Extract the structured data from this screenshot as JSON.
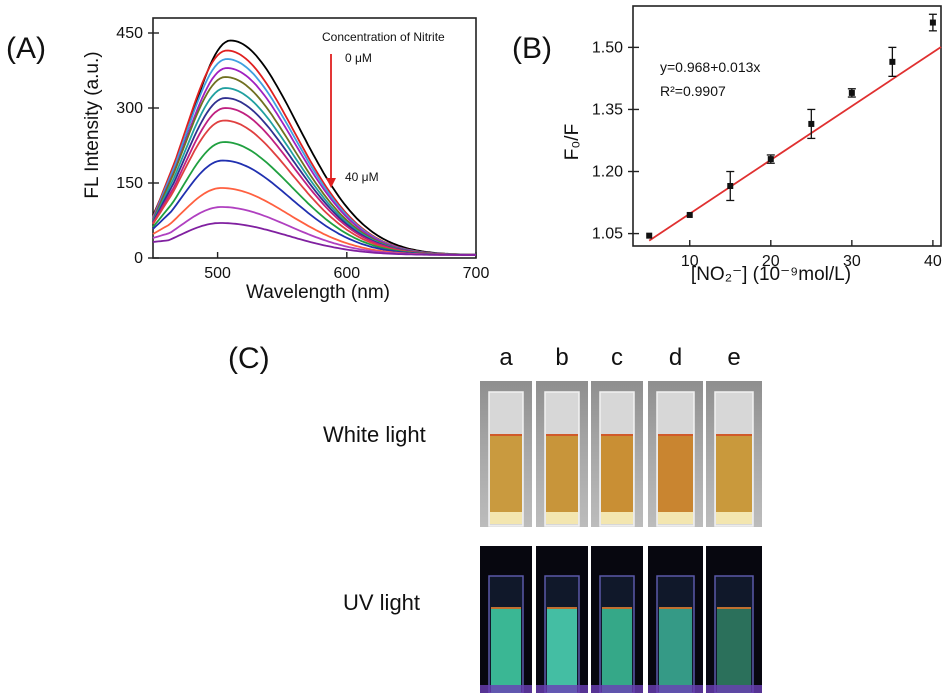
{
  "chart_data": [
    {
      "panel": "(A)",
      "type": "line",
      "xlabel": "Wavelength (nm)",
      "ylabel": "FL Intensity (a.u.)",
      "xlim": [
        450,
        700
      ],
      "ylim": [
        0,
        480
      ],
      "x_ticks": [
        500,
        600,
        700
      ],
      "y_ticks": [
        0,
        150,
        300,
        450
      ],
      "annotation_title": "Concentration of Nitrite",
      "annotation_start": "0 μM",
      "annotation_end": "40 μM",
      "peak_wavelength": [
        510,
        507,
        507,
        507,
        506,
        506,
        506,
        506,
        505,
        505,
        504,
        503,
        503,
        502
      ],
      "series": [
        {
          "color": "#000000",
          "peak": 435,
          "start": 85
        },
        {
          "color": "#e02020",
          "peak": 415,
          "start": 82
        },
        {
          "color": "#40a0e0",
          "peak": 398,
          "start": 80
        },
        {
          "color": "#a020c0",
          "peak": 380,
          "start": 78
        },
        {
          "color": "#707020",
          "peak": 362,
          "start": 76
        },
        {
          "color": "#20a0a0",
          "peak": 340,
          "start": 74
        },
        {
          "color": "#303090",
          "peak": 320,
          "start": 72
        },
        {
          "color": "#c02080",
          "peak": 300,
          "start": 70
        },
        {
          "color": "#e04040",
          "peak": 275,
          "start": 68
        },
        {
          "color": "#20a040",
          "peak": 232,
          "start": 62
        },
        {
          "color": "#2030b0",
          "peak": 195,
          "start": 58
        },
        {
          "color": "#ff6040",
          "peak": 140,
          "start": 48
        },
        {
          "color": "#b040c0",
          "peak": 102,
          "start": 40
        },
        {
          "color": "#8020a0",
          "peak": 70,
          "start": 32
        }
      ]
    },
    {
      "panel": "(B)",
      "type": "scatter",
      "xlabel": "[NO₂⁻] (10⁻⁹mol/L)",
      "ylabel": "F₀/F",
      "xlim": [
        3,
        41
      ],
      "ylim": [
        1.02,
        1.6
      ],
      "x_ticks": [
        10,
        20,
        30,
        40
      ],
      "y_ticks": [
        1.05,
        1.2,
        1.35,
        1.5
      ],
      "equation": "y=0.968+0.013x",
      "r_squared": "R²=0.9907",
      "fit": {
        "intercept": 0.968,
        "slope": 0.013,
        "color": "#e03030"
      },
      "points": [
        {
          "x": 5,
          "y": 1.045,
          "err": 0.005
        },
        {
          "x": 10,
          "y": 1.095,
          "err": 0.005
        },
        {
          "x": 15,
          "y": 1.165,
          "err": 0.035
        },
        {
          "x": 20,
          "y": 1.23,
          "err": 0.01
        },
        {
          "x": 25,
          "y": 1.315,
          "err": 0.035
        },
        {
          "x": 30,
          "y": 1.39,
          "err": 0.01
        },
        {
          "x": 35,
          "y": 1.465,
          "err": 0.035
        },
        {
          "x": 40,
          "y": 1.56,
          "err": 0.02
        }
      ]
    }
  ],
  "panel_c": {
    "label": "(C)",
    "columns": [
      "a",
      "b",
      "c",
      "d",
      "e"
    ],
    "row_labels": [
      "White light",
      "UV light"
    ],
    "white_liquid_colors": [
      "#c99a3f",
      "#c8953a",
      "#c98f34",
      "#c98530",
      "#c9993c"
    ],
    "uv_liquid_colors": [
      "#3fc9a0",
      "#4ad0b0",
      "#3ab892",
      "#3aa890",
      "#2f7a60"
    ]
  }
}
